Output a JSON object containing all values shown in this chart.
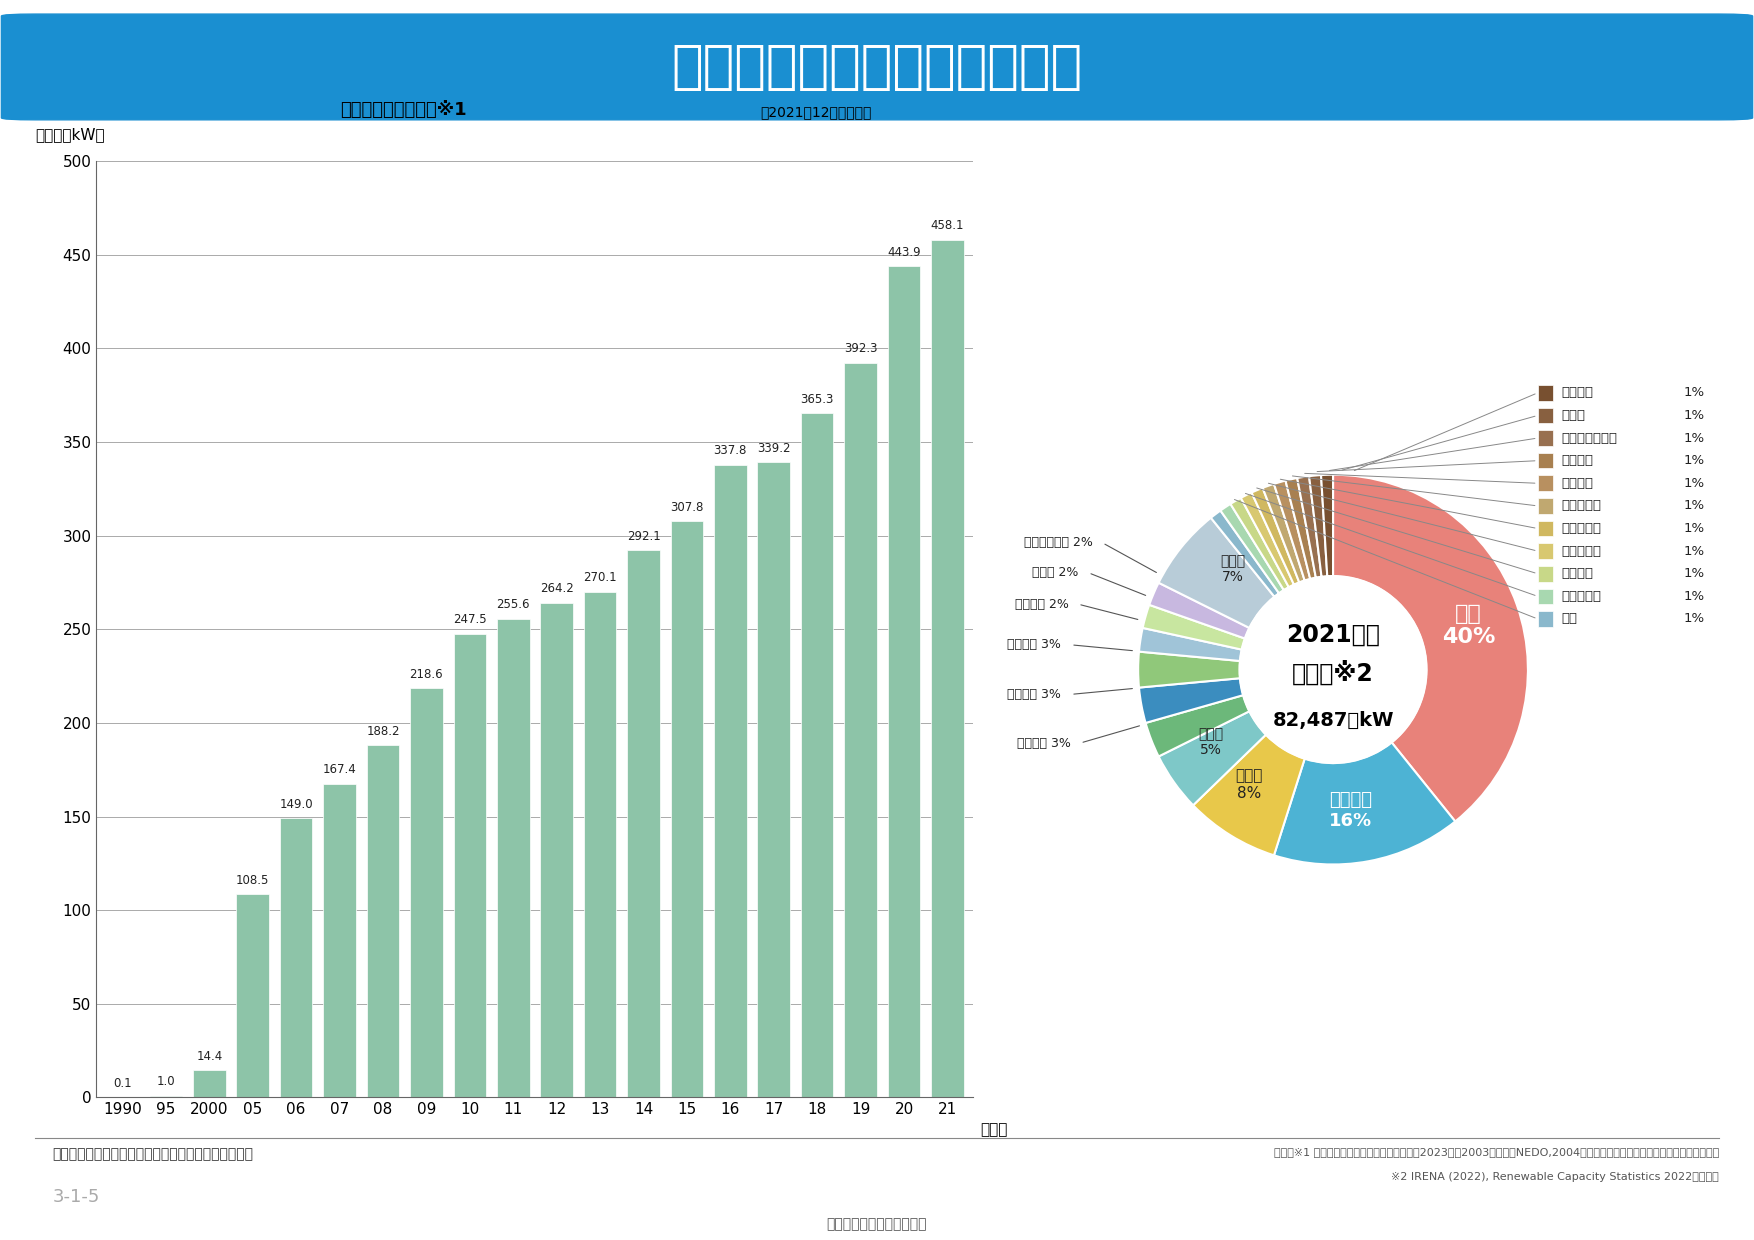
{
  "title": "日本の風力発電導入量の推移",
  "title_bg_color": "#1a8fd1",
  "title_text_color": "#ffffff",
  "bar_subtitle": "日本における導入量※1",
  "bar_subtitle_right": "（2021年12月末現在）",
  "bar_ylabel": "累計（万kW）",
  "bar_xlabel_suffix": "（年）",
  "bar_years": [
    "1990",
    "95",
    "2000",
    "05",
    "06",
    "07",
    "08",
    "09",
    "10",
    "11",
    "12",
    "13",
    "14",
    "15",
    "16",
    "17",
    "18",
    "19",
    "20",
    "21"
  ],
  "bar_values": [
    0.1,
    1.0,
    14.4,
    108.5,
    149.0,
    167.4,
    188.2,
    218.6,
    247.5,
    255.6,
    264.2,
    270.1,
    292.1,
    307.8,
    337.8,
    339.2,
    365.3,
    392.3,
    443.9,
    458.1
  ],
  "bar_color": "#8dc4a8",
  "bar_ylim": [
    0,
    500
  ],
  "bar_yticks": [
    0,
    50,
    100,
    150,
    200,
    250,
    300,
    350,
    400,
    450,
    500
  ],
  "pie_title_line1": "2021年末",
  "pie_title_line2": "世界計※2",
  "pie_title_line3": "82,487万kW",
  "pie_values": [
    40,
    16,
    8,
    5,
    3,
    3,
    3,
    2,
    2,
    2,
    7,
    1,
    1,
    1,
    1,
    1,
    1,
    1,
    1,
    1,
    1,
    1
  ],
  "pie_colors": [
    "#e8827a",
    "#4db3d4",
    "#e8c84a",
    "#7ec8c8",
    "#6cb87a",
    "#3b8dbf",
    "#90c87a",
    "#a0c4d8",
    "#c8e6a0",
    "#c8b8e0",
    "#b8ccd8",
    "#8ab8cc",
    "#a8d8b0",
    "#c8d888",
    "#d8c870",
    "#d0b860",
    "#c0a870",
    "#b89060",
    "#a88050",
    "#987050",
    "#886040",
    "#785030"
  ],
  "pie_slice_labels": [
    {
      "text": "中国\n40%",
      "r": 0.62,
      "color": "white",
      "fontsize": 15,
      "fontweight": "bold"
    },
    {
      "text": "アメリカ\n16%",
      "r": 0.62,
      "color": "white",
      "fontsize": 12,
      "fontweight": "bold"
    },
    {
      "text": "ドイツ\n8%",
      "r": 0.62,
      "color": "#333333",
      "fontsize": 11,
      "fontweight": "normal"
    },
    {
      "text": "インド\n5%",
      "r": 0.62,
      "color": "#333333",
      "fontsize": 10,
      "fontweight": "normal"
    },
    {
      "text": "スペイン\n3%",
      "r": 1.28,
      "color": "#333333",
      "fontsize": 9.5,
      "fontweight": "normal"
    },
    {
      "text": "イギリス 3%",
      "r": 1.28,
      "color": "#333333",
      "fontsize": 9.5,
      "fontweight": "normal"
    },
    {
      "text": "ブラジル 3%",
      "r": 1.28,
      "color": "#333333",
      "fontsize": 9.5,
      "fontweight": "normal"
    },
    {
      "text": "フランス 2%",
      "r": 1.28,
      "color": "#333333",
      "fontsize": 9.5,
      "fontweight": "normal"
    },
    {
      "text": "カナダ 2%",
      "r": 1.28,
      "color": "#333333",
      "fontsize": 9.5,
      "fontweight": "normal"
    },
    {
      "text": "スウェーデン 2%",
      "r": 1.28,
      "color": "#333333",
      "fontsize": 9.5,
      "fontweight": "normal"
    },
    {
      "text": "その他\n7%",
      "r": 0.62,
      "color": "#333333",
      "fontsize": 11,
      "fontweight": "normal"
    }
  ],
  "right_legend_labels": [
    "イタリア",
    "トルコ",
    "オーストラリア",
    "オランダ",
    "メキシコ",
    "デンマーク",
    "ポーランド",
    "ポルトガル",
    "ベルギー",
    "ノルウェー",
    "日本"
  ],
  "right_legend_pcts": [
    "1%",
    "1%",
    "1%",
    "1%",
    "1%",
    "1%",
    "1%",
    "1%",
    "1%",
    "1%",
    "1%"
  ],
  "note": "（注）四捨五入の関係で合計値が合わない場合がある",
  "footnote1": "出典：※1 資源エネルギー庁「エネルギー白書2023」（2003年以前はNEDO,2004年度以降について日本風力発電協会より作成）",
  "footnote2": "※2 IRENA (2022), Renewable Capacity Statistics 2022より作成",
  "page_id": "3-1-5",
  "page_bottom": "原子力・エネルギー図面集"
}
